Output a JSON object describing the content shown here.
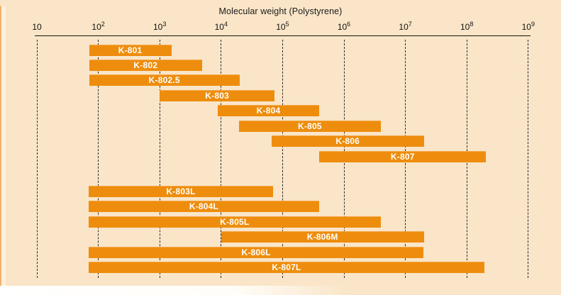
{
  "chart_data": {
    "type": "bar",
    "subtype": "horizontal-log-range-bars",
    "title": "Molecular weight (Polystyrene)",
    "xlabel": "Molecular weight (Polystyrene)",
    "ylabel": "",
    "x_axis": {
      "scale": "log10",
      "tick_base": "10",
      "tick_exponents": [
        1,
        2,
        3,
        4,
        5,
        6,
        7,
        8,
        9
      ],
      "range_log10": [
        1,
        9
      ],
      "gridlines": "vertical-dashed"
    },
    "legend_position": "none",
    "series": [
      {
        "name": "K-801",
        "group": "standard",
        "log_min": 1.85,
        "log_max": 3.19,
        "mw_min": 70,
        "mw_max": 1500
      },
      {
        "name": "K-802",
        "group": "standard",
        "log_min": 1.85,
        "log_max": 3.69,
        "mw_min": 70,
        "mw_max": 5000
      },
      {
        "name": "K-802.5",
        "group": "standard",
        "log_min": 1.85,
        "log_max": 4.3,
        "mw_min": 70,
        "mw_max": 20000
      },
      {
        "name": "K-803",
        "group": "standard",
        "log_min": 3.0,
        "log_max": 4.87,
        "mw_min": 1000,
        "mw_max": 70000
      },
      {
        "name": "K-804",
        "group": "standard",
        "log_min": 3.94,
        "log_max": 5.6,
        "mw_min": 9000,
        "mw_max": 400000
      },
      {
        "name": "K-805",
        "group": "standard",
        "log_min": 4.29,
        "log_max": 6.6,
        "mw_min": 20000,
        "mw_max": 4000000
      },
      {
        "name": "K-806",
        "group": "standard",
        "log_min": 4.82,
        "log_max": 7.3,
        "mw_min": 70000,
        "mw_max": 20000000
      },
      {
        "name": "K-807",
        "group": "standard",
        "log_min": 5.6,
        "log_max": 8.31,
        "mw_min": 400000,
        "mw_max": 200000000
      },
      {
        "name": "K-803L",
        "group": "linear",
        "log_min": 1.84,
        "log_max": 4.85,
        "mw_min": 70,
        "mw_max": 70000
      },
      {
        "name": "K-804L",
        "group": "linear",
        "log_min": 1.84,
        "log_max": 5.6,
        "mw_min": 70,
        "mw_max": 400000
      },
      {
        "name": "K-805L",
        "group": "linear",
        "log_min": 1.84,
        "log_max": 6.6,
        "mw_min": 70,
        "mw_max": 4000000
      },
      {
        "name": "K-806M",
        "group": "linear",
        "log_min": 4.0,
        "log_max": 7.3,
        "mw_min": 10000,
        "mw_max": 20000000
      },
      {
        "name": "K-806L",
        "group": "linear",
        "log_min": 1.84,
        "log_max": 7.3,
        "mw_min": 70,
        "mw_max": 20000000
      },
      {
        "name": "K-807L",
        "group": "linear",
        "log_min": 1.84,
        "log_max": 8.29,
        "mw_min": 70,
        "mw_max": 200000000
      }
    ],
    "colors": {
      "background": "#FAE5C8",
      "bar": "#EE8D0D",
      "bar_label": "#FFFFFF",
      "axis": "#111111",
      "edge_stripe": "#F3B268"
    }
  }
}
